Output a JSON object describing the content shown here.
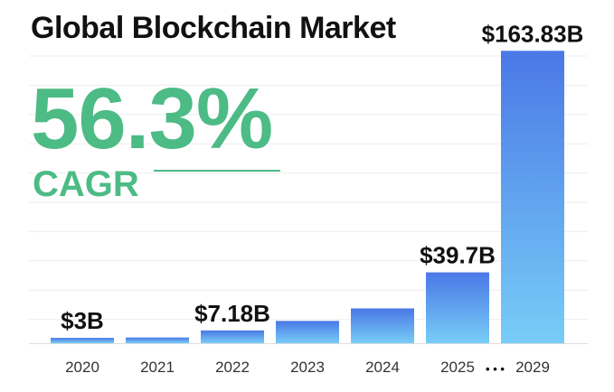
{
  "title": "Global Blockchain Market",
  "cagr": {
    "value": "56.3%",
    "label": "CAGR"
  },
  "ellipsis": "• • •",
  "colors": {
    "accent_green": "#4dbb85",
    "bar_top": "#4a78e6",
    "bar_bottom": "#78cdf7",
    "grid": "#eeeeee",
    "axis": "#dddddd",
    "text": "#111111",
    "tick": "#333333"
  },
  "chart_data": {
    "type": "bar",
    "title": "Global Blockchain Market",
    "categories": [
      "2020",
      "2021",
      "2022",
      "2023",
      "2024",
      "2025",
      "2029"
    ],
    "values": [
      3,
      3.2,
      7.18,
      12.5,
      19.5,
      39.7,
      163.83
    ],
    "unit": "billion USD",
    "data_labels": [
      "$3B",
      "",
      "$7.18B",
      "",
      "",
      "$39.7B",
      "$163.83B"
    ],
    "ylim": [
      0,
      167
    ],
    "grid": true,
    "xlabel": "",
    "ylabel": ""
  }
}
